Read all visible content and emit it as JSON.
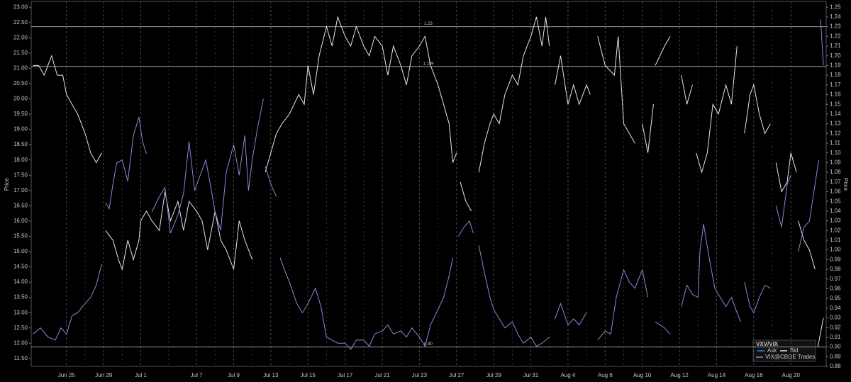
{
  "chart_data": {
    "type": "line",
    "x_axis_type": "trading-day",
    "xlim": [
      -1.9,
      40.9
    ],
    "xticks": [
      {
        "value": 0,
        "label": "Jun 25"
      },
      {
        "value": 2,
        "label": "Jun 29"
      },
      {
        "value": 4,
        "label": "Jul 1"
      },
      {
        "value": 7,
        "label": "Jul 7"
      },
      {
        "value": 9,
        "label": "Jul 9"
      },
      {
        "value": 11,
        "label": "Jul 13"
      },
      {
        "value": 13,
        "label": "Jul 15"
      },
      {
        "value": 15,
        "label": "Jul 17"
      },
      {
        "value": 17,
        "label": "Jul 21"
      },
      {
        "value": 19,
        "label": "Jul 23"
      },
      {
        "value": 21,
        "label": "Jul 27"
      },
      {
        "value": 23,
        "label": "Jul 29"
      },
      {
        "value": 25,
        "label": "Jul 31"
      },
      {
        "value": 27,
        "label": "Aug 4"
      },
      {
        "value": 29,
        "label": "Aug 6"
      },
      {
        "value": 31,
        "label": "Aug 10"
      },
      {
        "value": 33,
        "label": "Aug 12"
      },
      {
        "value": 35,
        "label": "Aug 14"
      },
      {
        "value": 37,
        "label": "Aug 18"
      },
      {
        "value": 39,
        "label": "Aug 20"
      }
    ],
    "ylabel": "Price",
    "y2label": "Price",
    "ylim": [
      11.24,
      23.19
    ],
    "yticks": [
      {
        "value": 11.5,
        "label": "11.50"
      },
      {
        "value": 12,
        "label": "12.00"
      },
      {
        "value": 12.5,
        "label": "12.50"
      },
      {
        "value": 13,
        "label": "13.00"
      },
      {
        "value": 13.5,
        "label": "13.50"
      },
      {
        "value": 14,
        "label": "14.00"
      },
      {
        "value": 14.5,
        "label": "14.50"
      },
      {
        "value": 15,
        "label": "15.00"
      },
      {
        "value": 15.5,
        "label": "15.50"
      },
      {
        "value": 16,
        "label": "16.00"
      },
      {
        "value": 16.5,
        "label": "16.50"
      },
      {
        "value": 17,
        "label": "17.00"
      },
      {
        "value": 17.5,
        "label": "17.50"
      },
      {
        "value": 18,
        "label": "18.00"
      },
      {
        "value": 18.5,
        "label": "18.50"
      },
      {
        "value": 19,
        "label": "19.00"
      },
      {
        "value": 19.5,
        "label": "19.50"
      },
      {
        "value": 20,
        "label": "20.00"
      },
      {
        "value": 20.5,
        "label": "20.50"
      },
      {
        "value": 21,
        "label": "21.00"
      },
      {
        "value": 21.5,
        "label": "21.50"
      },
      {
        "value": 22,
        "label": "22.00"
      },
      {
        "value": 22.5,
        "label": "22.50"
      },
      {
        "value": 23,
        "label": "23.00"
      }
    ],
    "y2lim": [
      0.88,
      1.256
    ],
    "y2ticks": [
      0.88,
      0.89,
      {
        "value": 0.9,
        "label": "0.90"
      },
      0.91,
      0.92,
      0.93,
      0.94,
      0.95,
      0.96,
      0.97,
      0.98,
      0.99,
      {
        "value": 1.0,
        "label": "1.00"
      },
      1.01,
      1.02,
      1.03,
      1.04,
      1.05,
      1.06,
      1.07,
      1.08,
      1.09,
      {
        "value": 1.1,
        "label": "1.10"
      },
      1.11,
      1.12,
      1.13,
      1.14,
      1.15,
      1.16,
      1.17,
      1.18,
      1.19,
      {
        "value": 1.2,
        "label": "1.20"
      },
      1.21,
      1.22,
      1.23,
      1.24,
      1.25
    ],
    "hlines": [
      {
        "value": 1.23,
        "label": "1.23"
      },
      {
        "value": 1.189,
        "label": "1.189"
      },
      {
        "value": 0.9,
        "label": "0.90"
      }
    ],
    "grid": true,
    "legend": {
      "title": "VXV/VIX",
      "position": "lower right",
      "entries": [
        {
          "name": "Ask",
          "color": "#2f86e0"
        }
      ]
    },
    "series": [
      {
        "name": "Bid",
        "color": "#e6e6e6",
        "axis": "y2",
        "x": [
          -1.8,
          -1.5,
          -1.2,
          -0.8,
          -0.5,
          -0.2,
          0,
          0.3,
          0.6,
          1,
          1.3,
          1.6,
          1.9,
          2.0,
          2.1,
          2.5,
          2.8,
          3,
          3.3,
          3.6,
          3.9,
          4,
          4.3,
          4.6,
          5,
          5.3,
          5.6,
          6,
          6.3,
          6.6,
          7,
          7.3,
          7.6,
          8,
          8.3,
          8.6,
          9,
          9.3,
          9.6,
          10,
          10.3,
          10.7,
          11,
          11.3,
          11.6,
          12,
          12.5,
          12.8,
          13,
          13.3,
          13.6,
          14,
          14.3,
          14.6,
          15,
          15.3,
          15.6,
          16,
          16.3,
          16.6,
          17,
          17.3,
          17.6,
          18,
          18.3,
          18.6,
          19,
          19.3,
          19.6,
          20,
          20.3,
          20.6,
          20.8,
          21,
          21.1,
          21.2,
          21.5,
          21.8,
          22,
          22.2,
          22.5,
          22.8,
          23,
          23.3,
          23.6,
          24,
          24.3,
          24.6,
          25,
          25.3,
          25.6,
          25.8,
          26,
          26.1,
          26.3,
          26.6,
          27,
          27.3,
          27.6,
          28,
          28.2,
          28.4,
          28.6,
          29,
          29.5,
          29.7,
          30,
          30.3,
          30.6,
          30.8,
          31,
          31.3,
          31.6,
          31.65,
          31.7,
          32.2,
          32.5,
          32.8,
          33.1,
          33.4,
          33.7,
          33.8,
          33.9,
          34.2,
          34.5,
          34.8,
          35.1,
          35.5,
          35.8,
          36.1,
          36.3,
          36.5,
          36.8,
          37,
          37.3,
          37.6,
          37.9,
          38.0,
          38.2,
          38.5,
          38.8,
          39,
          39.3,
          39.35,
          39.4,
          39.7,
          40,
          40.3,
          40.35,
          40.45,
          40.75
        ],
        "values": [
          1.19,
          1.19,
          1.18,
          1.2,
          1.18,
          1.18,
          1.16,
          1.15,
          1.14,
          1.12,
          1.1,
          1.09,
          1.1,
          null,
          1.02,
          1.01,
          0.99,
          0.98,
          1.01,
          0.99,
          1.01,
          1.03,
          1.04,
          1.03,
          1.02,
          1.06,
          1.03,
          1.05,
          1.02,
          1.05,
          1.04,
          1.03,
          1.0,
          1.04,
          1.01,
          1.0,
          0.98,
          1.03,
          1.01,
          0.99,
          null,
          1.08,
          1.1,
          1.12,
          1.13,
          1.14,
          1.16,
          1.15,
          1.19,
          1.16,
          1.2,
          1.23,
          1.21,
          1.24,
          1.22,
          1.21,
          1.23,
          1.21,
          1.2,
          1.22,
          1.21,
          1.18,
          1.21,
          1.19,
          1.17,
          1.2,
          1.21,
          1.22,
          1.19,
          1.17,
          1.15,
          1.13,
          1.09,
          1.1,
          null,
          1.07,
          1.05,
          1.04,
          null,
          1.08,
          1.11,
          1.13,
          1.14,
          1.13,
          1.16,
          1.18,
          1.17,
          1.2,
          1.22,
          1.24,
          1.21,
          1.24,
          1.21,
          null,
          1.17,
          1.2,
          1.15,
          1.17,
          1.15,
          1.17,
          1.16,
          null,
          1.22,
          1.19,
          1.18,
          1.22,
          1.13,
          1.12,
          1.11,
          null,
          1.13,
          1.1,
          1.15,
          null,
          1.19,
          1.21,
          1.22,
          null,
          1.18,
          1.15,
          1.17,
          null,
          1.1,
          1.08,
          1.1,
          1.15,
          1.14,
          1.17,
          1.15,
          1.21,
          null,
          1.12,
          1.16,
          1.17,
          1.14,
          1.12,
          1.13,
          null,
          1.09,
          1.06,
          1.07,
          1.1,
          1.08,
          null,
          1.03,
          1.01,
          1.0,
          0.98,
          null,
          0.9,
          0.93
        ]
      },
      {
        "name": "VIX@CBOE Trades",
        "color": "#9b7fd6",
        "x": [
          -1.8,
          -1.4,
          -1,
          -0.6,
          -0.3,
          0,
          0.3,
          0.6,
          1,
          1.3,
          1.6,
          1.9,
          2.0,
          2.1,
          2.3,
          2.5,
          2.7,
          3,
          3.3,
          3.6,
          3.9,
          4.1,
          4.3,
          4.45,
          4.6,
          5,
          5.3,
          5.6,
          6,
          6.3,
          6.6,
          6.9,
          7.2,
          7.5,
          7.8,
          8,
          8.3,
          8.6,
          9,
          9.3,
          9.6,
          9.8,
          10,
          10.3,
          10.6,
          10.65,
          10.7,
          11,
          11.3,
          11.4,
          11.5,
          11.8,
          12,
          12.4,
          12.7,
          13,
          13.4,
          13.7,
          14,
          14.3,
          14.6,
          15,
          15.3,
          15.6,
          16,
          16.3,
          16.6,
          17,
          17.3,
          17.6,
          18,
          18.3,
          18.6,
          19,
          19.3,
          19.6,
          20,
          20.3,
          20.6,
          20.8,
          21,
          21.1,
          21.4,
          21.7,
          21.9,
          22,
          22.2,
          22.5,
          22.8,
          23,
          23.3,
          23.6,
          24,
          24.3,
          24.6,
          25,
          25.3,
          25.6,
          26,
          26.1,
          26.3,
          26.6,
          27,
          27.3,
          27.6,
          28,
          28.4,
          28.6,
          29,
          29.3,
          29.6,
          30,
          30.3,
          30.6,
          31,
          31.3,
          31.6,
          31.7,
          32.2,
          32.5,
          32.8,
          33.1,
          33.4,
          33.7,
          34,
          34.1,
          34.3,
          34.6,
          34.9,
          35.2,
          35.5,
          35.8,
          36.1,
          36.3,
          36.4,
          36.5,
          36.8,
          37,
          37.3,
          37.6,
          37.9,
          38.0,
          38.2,
          38.5,
          38.8,
          39,
          39.3,
          39.4,
          39.7,
          40,
          40.3,
          40.5,
          40.55,
          40.6,
          40.75
        ],
        "values": [
          12.3,
          12.5,
          12.2,
          12.1,
          12.5,
          12.3,
          12.9,
          13.0,
          13.3,
          13.5,
          13.9,
          14.6,
          null,
          16.6,
          16.4,
          17.2,
          17.9,
          18.0,
          17.3,
          18.8,
          19.4,
          18.6,
          18.2,
          null,
          16.3,
          16.8,
          17.1,
          15.6,
          16.2,
          16.9,
          18.6,
          17.0,
          17.5,
          18.0,
          17.0,
          16.3,
          15.7,
          17.6,
          18.5,
          17.5,
          18.8,
          17.0,
          18.0,
          19.1,
          20.0,
          null,
          17.8,
          17.2,
          16.8,
          null,
          14.8,
          14.3,
          14.0,
          13.3,
          13.0,
          13.3,
          13.8,
          13.2,
          12.2,
          12.1,
          12.0,
          12.0,
          11.8,
          12.1,
          12.1,
          11.9,
          12.3,
          12.4,
          12.6,
          12.3,
          12.4,
          12.2,
          12.5,
          12.2,
          11.9,
          12.6,
          13.1,
          13.5,
          14.2,
          14.8,
          null,
          15.5,
          15.8,
          16.0,
          15.6,
          null,
          15.2,
          14.3,
          13.5,
          13.1,
          12.8,
          12.5,
          12.7,
          12.3,
          12.0,
          12.2,
          11.9,
          12.0,
          12.2,
          null,
          12.8,
          13.3,
          12.6,
          12.8,
          12.6,
          13.0,
          null,
          12.1,
          12.4,
          12.3,
          13.5,
          14.4,
          14.0,
          13.8,
          14.4,
          13.5,
          null,
          12.7,
          12.5,
          12.3,
          null,
          13.2,
          13.9,
          13.6,
          13.5,
          15.0,
          15.9,
          14.8,
          13.8,
          13.5,
          13.2,
          13.5,
          13.0,
          12.7,
          null,
          14.0,
          13.2,
          13.0,
          13.5,
          13.9,
          13.8,
          null,
          16.5,
          15.8,
          17.2,
          17.5,
          null,
          15.0,
          15.8,
          16.0,
          17.2,
          18.0,
          null,
          22.6,
          21.1
        ]
      }
    ]
  }
}
